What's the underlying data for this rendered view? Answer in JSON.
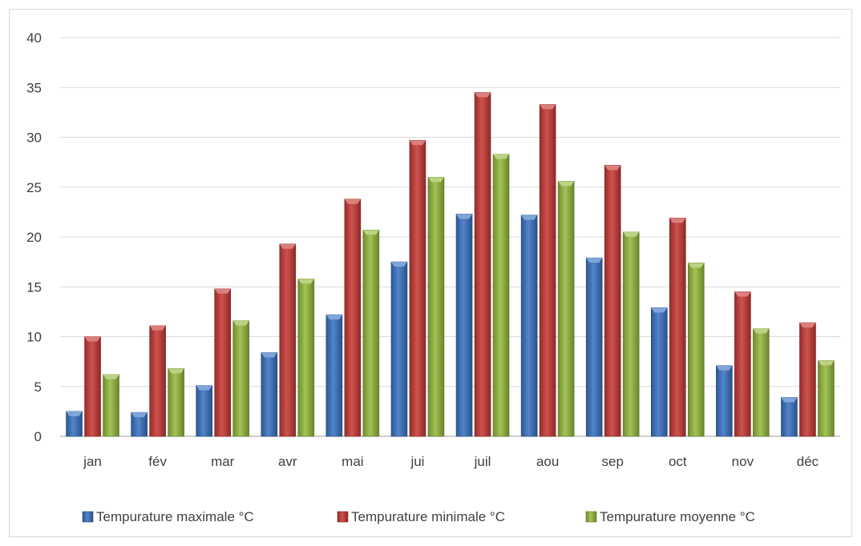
{
  "chart_data": {
    "type": "bar",
    "categories": [
      "jan",
      "fév",
      "mar",
      "avr",
      "mai",
      "jui",
      "juil",
      "aou",
      "sep",
      "oct",
      "nov",
      "déc"
    ],
    "series": [
      {
        "name": "Tempurature maximale °C",
        "color": "#3a74c4",
        "values": [
          2.5,
          2.4,
          5.1,
          8.4,
          12.2,
          17.5,
          22.3,
          22.2,
          17.9,
          12.9,
          7.1,
          3.9
        ]
      },
      {
        "name": "Tempurature minimale °C",
        "color": "#c83a36",
        "values": [
          10.0,
          11.1,
          14.8,
          19.3,
          23.8,
          29.7,
          34.5,
          33.3,
          27.2,
          21.9,
          14.5,
          11.4
        ]
      },
      {
        "name": "Tempurature moyenne °C",
        "color": "#97bb3e",
        "values": [
          6.2,
          6.8,
          11.6,
          15.8,
          20.7,
          26.0,
          28.3,
          25.6,
          20.5,
          17.4,
          10.8,
          7.6
        ]
      }
    ],
    "title": "",
    "xlabel": "",
    "ylabel": "",
    "ylim": [
      0,
      40
    ],
    "yticks": [
      0,
      5,
      10,
      15,
      20,
      25,
      30,
      35,
      40
    ],
    "grid": true,
    "legend_position": "bottom"
  }
}
